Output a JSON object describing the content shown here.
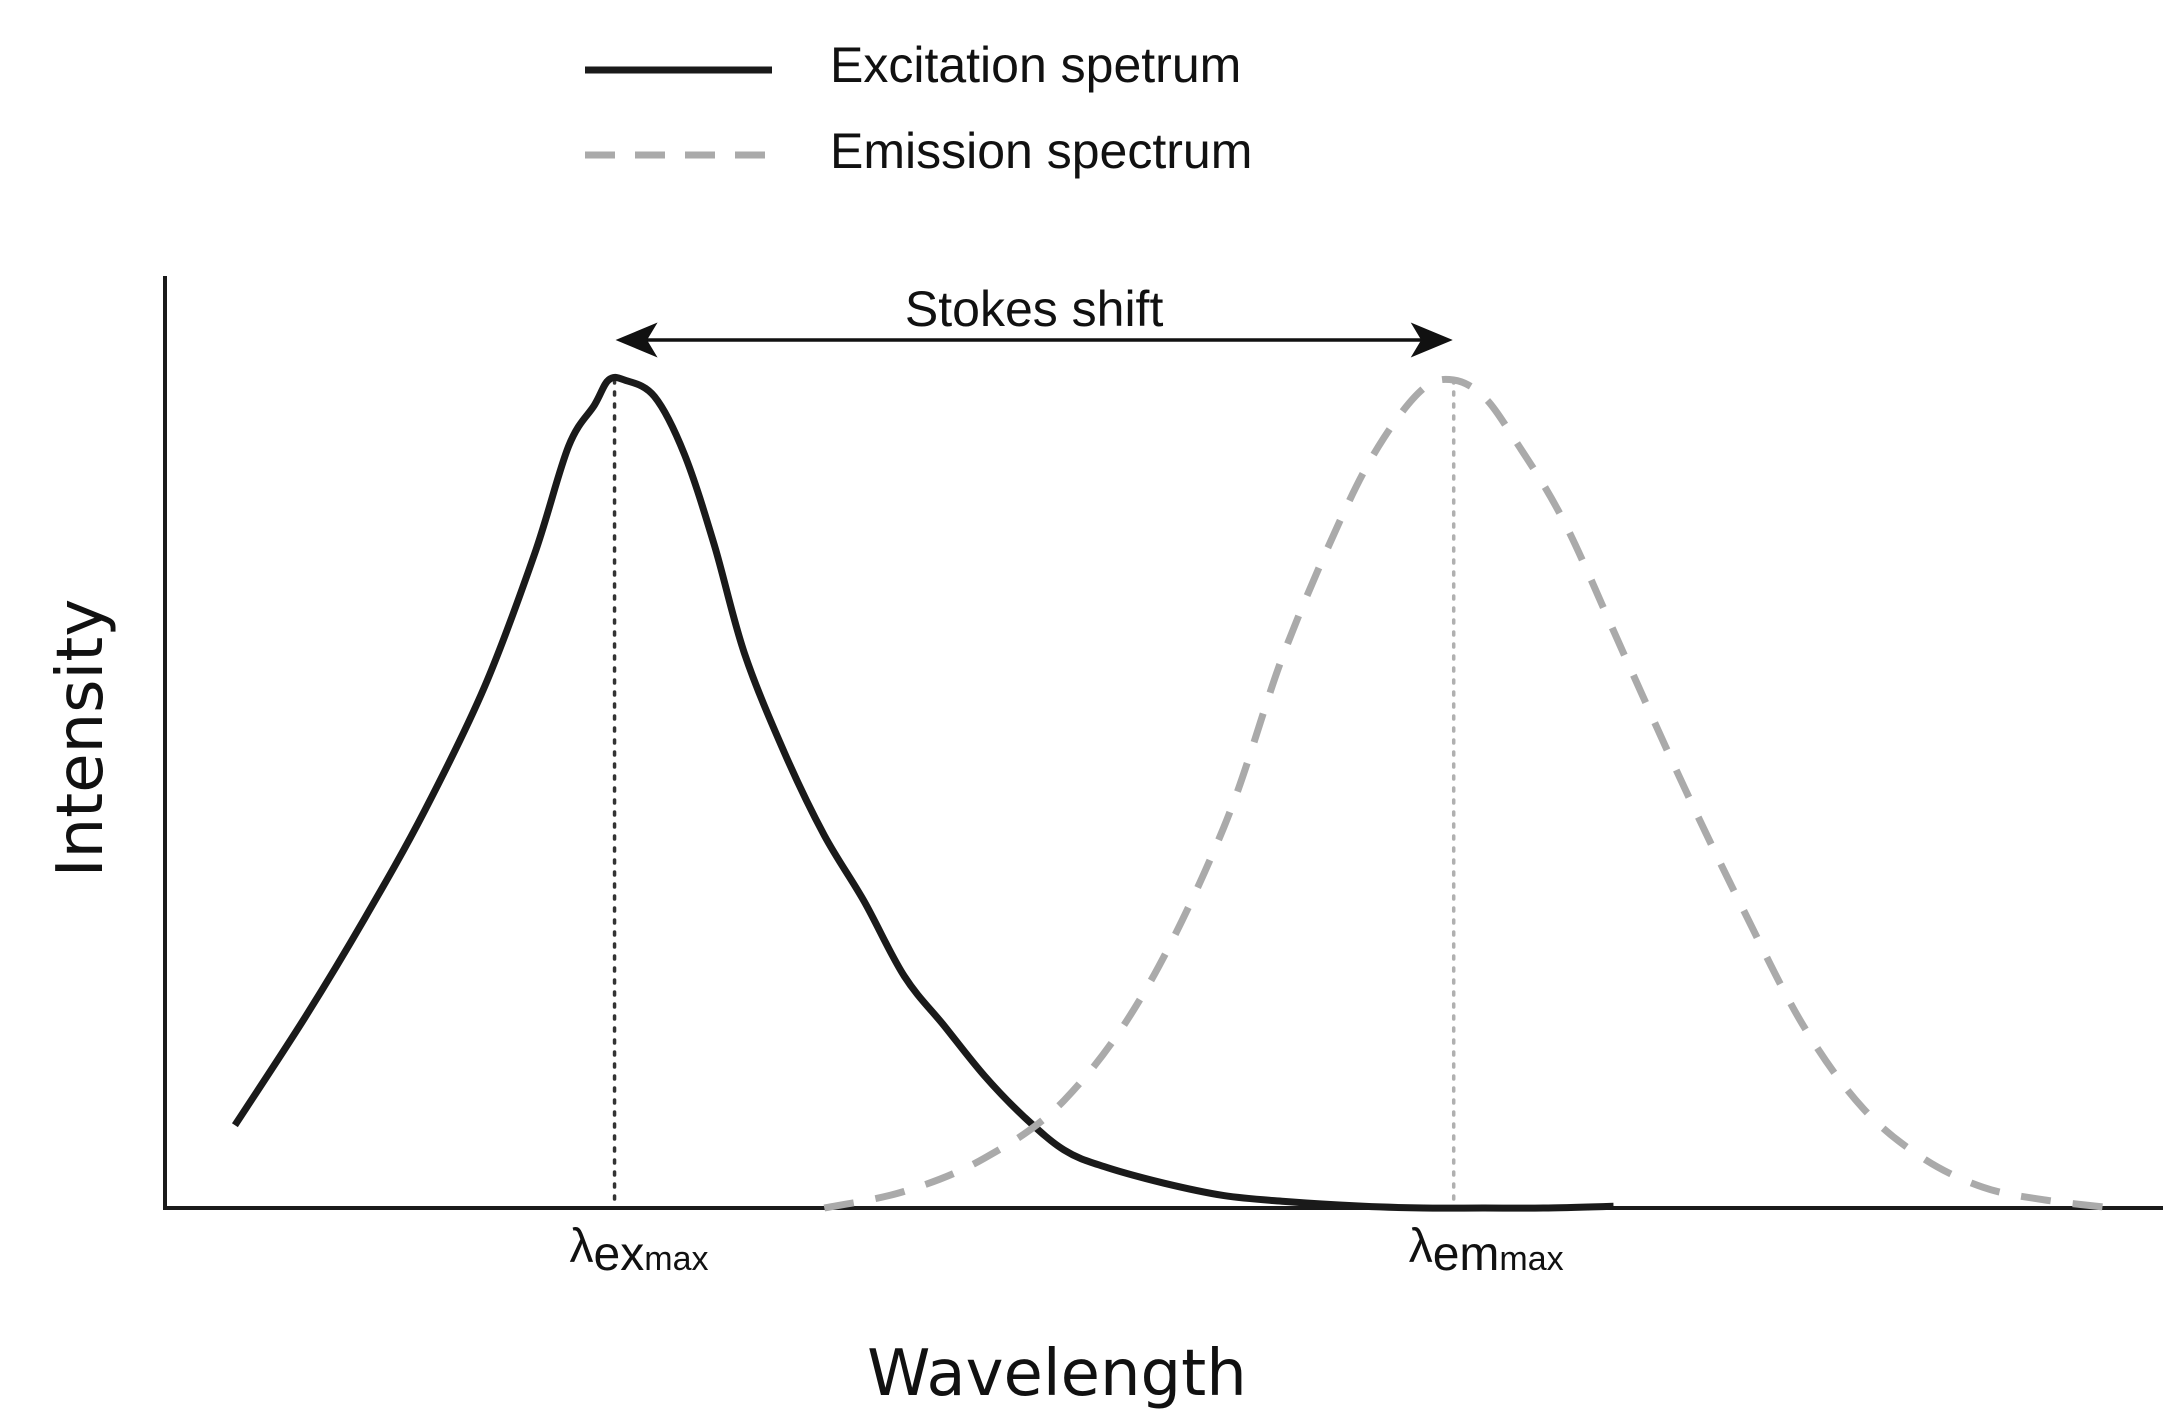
{
  "chart_data": {
    "type": "line",
    "xlabel": "Wavelength",
    "ylabel": "Intensity",
    "xlim": [
      0,
      100
    ],
    "ylim": [
      0,
      100
    ],
    "grid": false,
    "legend_position": "top-center",
    "series": [
      {
        "name": "Excitation spetrum",
        "color": "#1a1a1a",
        "line_style": "solid",
        "x": [
          3.5,
          7,
          10,
          13,
          16,
          18.5,
          20.2,
          21.5,
          22.2,
          23,
          24.5,
          26,
          27.5,
          29,
          31,
          33,
          35,
          37,
          39,
          41,
          43,
          45,
          47,
          50,
          53,
          56,
          60,
          63,
          66,
          69,
          72.5
        ],
        "y": [
          10,
          23,
          35,
          48,
          63,
          79,
          92,
          97,
          100,
          100,
          98,
          91,
          80,
          67,
          55,
          45,
          37,
          28,
          22,
          16,
          11,
          7,
          5,
          3,
          1.5,
          0.8,
          0.2,
          0,
          0,
          0,
          0.2
        ]
      },
      {
        "name": "Emission spectrum",
        "color": "#aaaaaa",
        "line_style": "dashed",
        "x": [
          33,
          37,
          41,
          45,
          49,
          53,
          56,
          59,
          61,
          63,
          64.5,
          66,
          67.5,
          70,
          73,
          76,
          79,
          82,
          85,
          88,
          91,
          94,
          97.5
        ],
        "y": [
          0,
          2,
          6,
          13,
          26,
          46,
          67,
          84,
          93,
          99,
          100,
          98,
          93,
          83,
          67,
          51,
          36,
          22,
          12,
          6,
          2.5,
          1,
          0
        ]
      }
    ],
    "markers": [
      {
        "label": "λ",
        "subscript_main": "ex",
        "subscript_max": "max",
        "x": 22.5
      },
      {
        "label": "λ",
        "subscript_main": "em",
        "subscript_max": "max",
        "x": 64.5
      }
    ],
    "annotation": {
      "text": "Stokes shift",
      "from_x": 22.5,
      "to_x": 64.5
    }
  },
  "colors": {
    "axis": "#1a1a1a",
    "excitation": "#1a1a1a",
    "emission": "#aaaaaa",
    "ex_guide": "#333333",
    "em_guide": "#b0b0b0"
  }
}
